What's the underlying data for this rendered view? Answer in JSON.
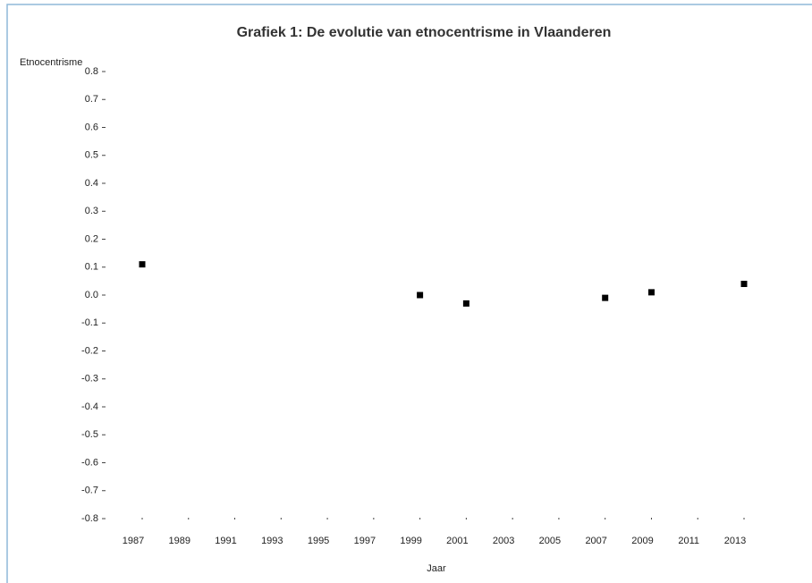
{
  "chart_data": {
    "type": "scatter",
    "title": "Grafiek 1: De evolutie van etnocentrisme in Vlaanderen",
    "y_label": "Etnocentrisme",
    "x_label": "Jaar",
    "color": "#000000",
    "x": [
      1987,
      1999,
      2001,
      2007,
      2009,
      2013
    ],
    "values": [
      0.11,
      0.0,
      -0.03,
      -0.01,
      0.01,
      0.04
    ],
    "xlim": [
      1987,
      2013
    ],
    "xticks": [
      1987,
      1989,
      1991,
      1993,
      1995,
      1997,
      1999,
      2001,
      2003,
      2005,
      2007,
      2009,
      2011,
      2013
    ],
    "ylim": [
      -0.8,
      0.8
    ],
    "yticks": [
      {
        "value": 0.8,
        "label": "0.8"
      },
      {
        "value": 0.7,
        "label": "0.7"
      },
      {
        "value": 0.6,
        "label": "0.6"
      },
      {
        "value": 0.5,
        "label": "0.5"
      },
      {
        "value": 0.4,
        "label": "0.4"
      },
      {
        "value": 0.3,
        "label": "0.3"
      },
      {
        "value": 0.2,
        "label": "0.2"
      },
      {
        "value": 0.1,
        "label": "0.1"
      },
      {
        "value": 0,
        "label": "0.0"
      },
      {
        "value": -0.1,
        "label": "-0.1"
      },
      {
        "value": -0.2,
        "label": "-0.2"
      },
      {
        "value": -0.3,
        "label": "-0.3"
      },
      {
        "value": -0.4,
        "label": "-0.4"
      },
      {
        "value": -0.5,
        "label": "-0.5"
      },
      {
        "value": -0.6,
        "label": "-0.6"
      },
      {
        "value": -0.7,
        "label": "-0.7"
      },
      {
        "value": -0.8,
        "label": "-0.8"
      }
    ],
    "grid": false
  }
}
